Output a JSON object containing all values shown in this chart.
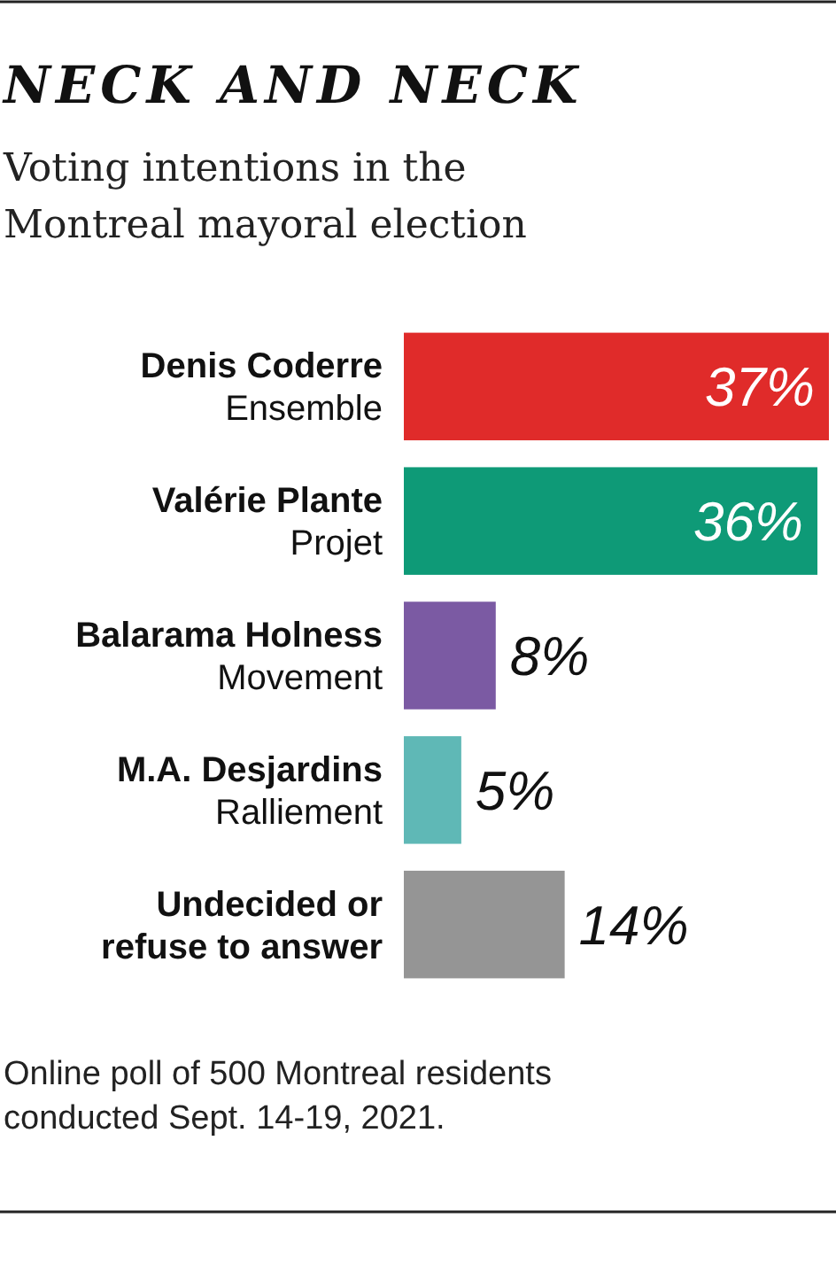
{
  "chart_data": {
    "type": "bar",
    "orientation": "horizontal",
    "title": "NECK AND NECK",
    "subtitle": "Voting intentions in the Montreal mayoral election",
    "categories": [
      "Denis Coderre\nEnsemble",
      "Valérie Plante\nProjet",
      "Balarama Holness\nMovement",
      "M.A. Desjardins\nRalliement",
      "Undecided or\nrefuse to answer"
    ],
    "values": [
      37,
      36,
      8,
      5,
      14
    ],
    "colors": [
      "#e02b2a",
      "#0e9a77",
      "#7b5aa3",
      "#5fb8b6",
      "#959595"
    ],
    "value_labels": [
      "37%",
      "36%",
      "8%",
      "5%",
      "14%"
    ],
    "annotations": [
      "Online poll of 500 Montreal residents conducted Sept. 14-19, 2021."
    ]
  }
}
